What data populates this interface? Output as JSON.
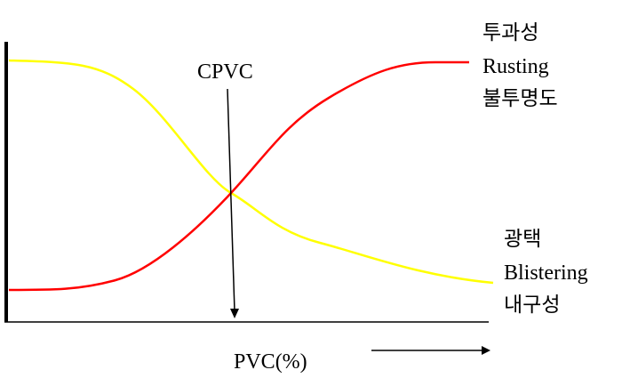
{
  "chart_data": {
    "type": "line",
    "title": "",
    "xlabel": "PVC(%)",
    "ylabel": "",
    "annotation": "CPVC",
    "grid": false,
    "series": [
      {
        "name": "투과성 Rusting 불투명도",
        "labels": [
          "투과성",
          "Rusting",
          "불투명도"
        ],
        "color": "#ff0000"
      },
      {
        "name": "광택 Blistering 내구성",
        "labels": [
          "광택",
          "Blistering",
          "내구성"
        ],
        "color": "#ffff00"
      }
    ]
  }
}
